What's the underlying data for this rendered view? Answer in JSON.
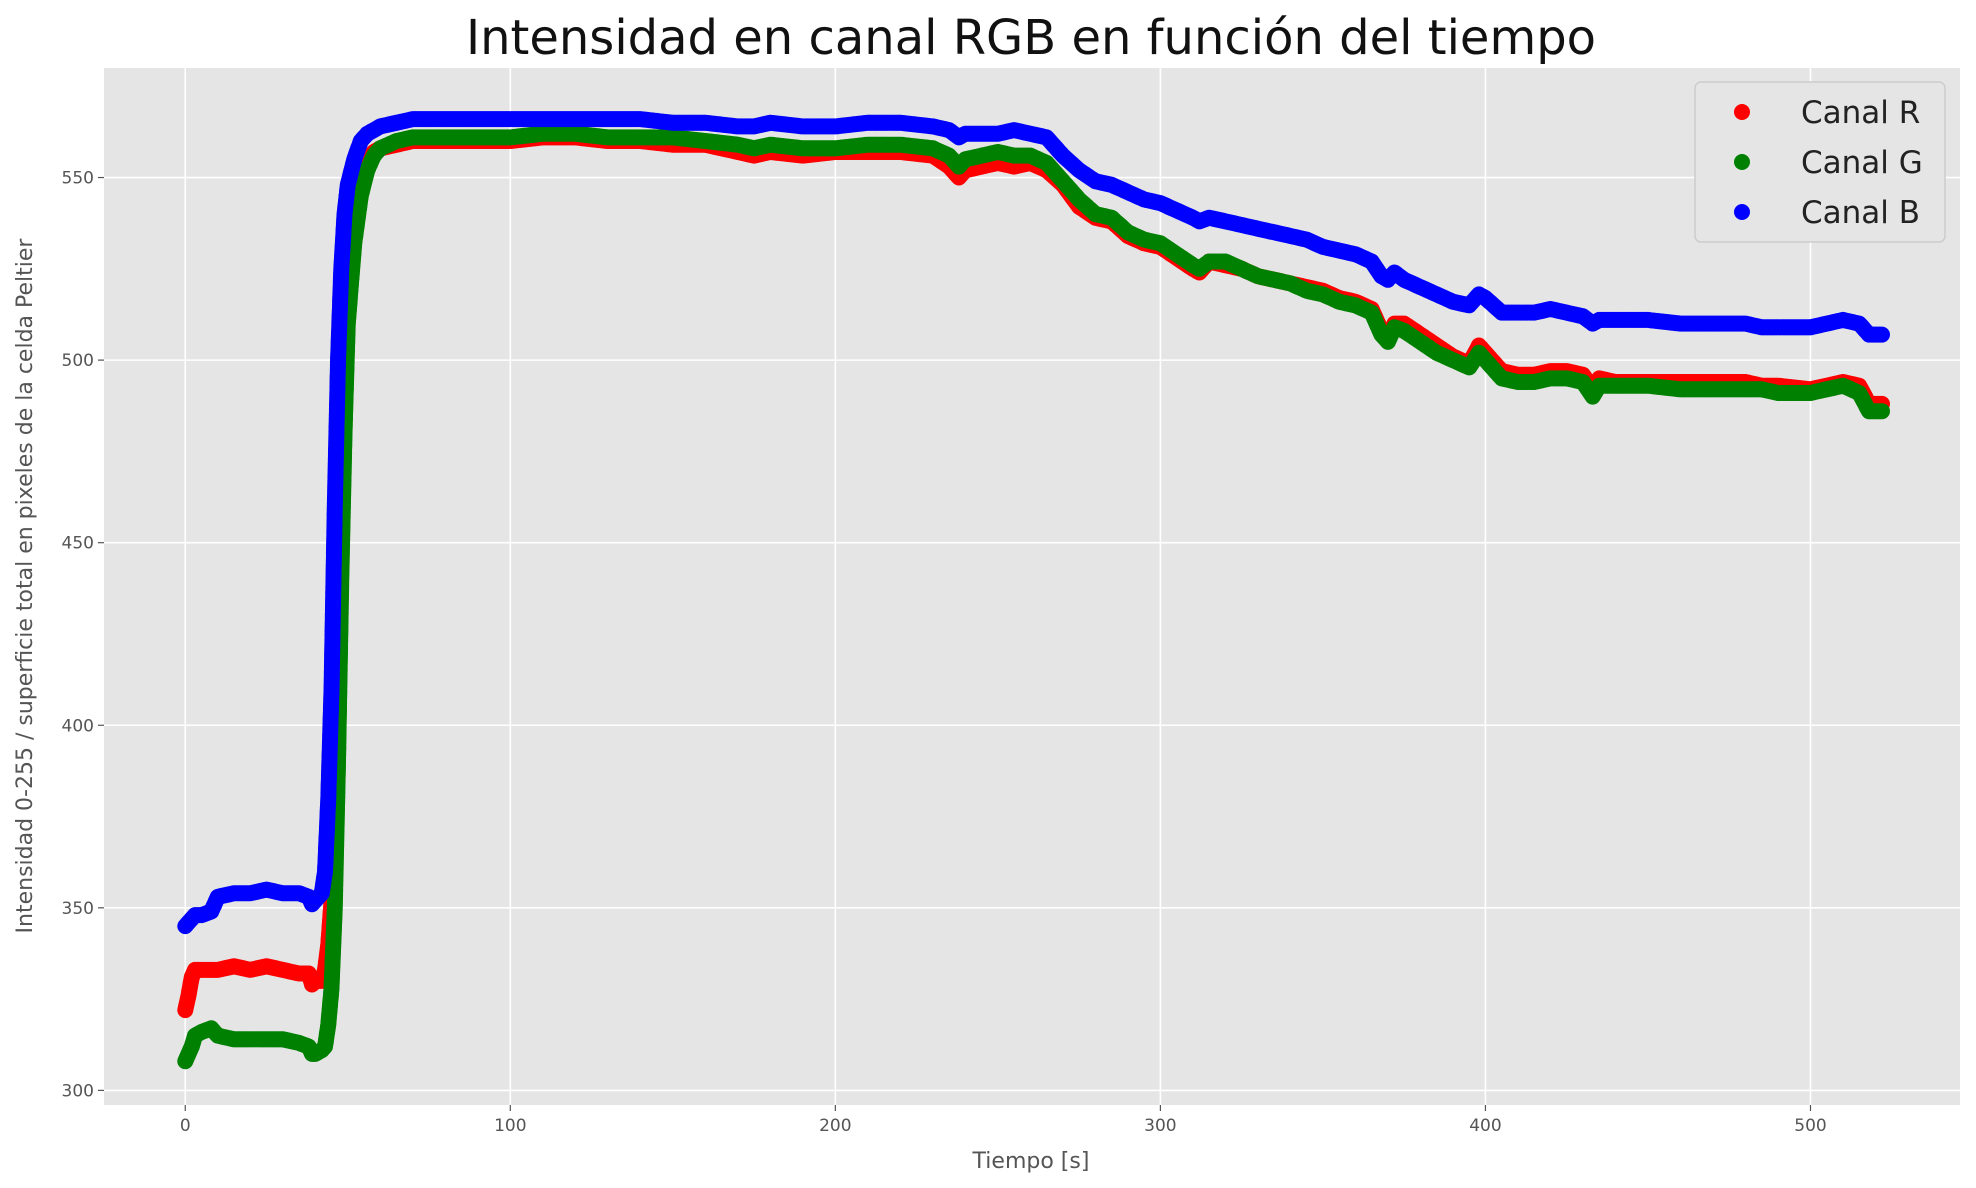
{
  "chart_data": {
    "type": "scatter",
    "title": "Intensidad en canal RGB en función del tiempo",
    "xlabel": "Tiempo [s]",
    "ylabel": "Intensidad 0-255 / superficie total en pixeles de la celda Peltier",
    "xlim": [
      -25,
      546
    ],
    "ylim": [
      296,
      580
    ],
    "x_ticks": [
      0,
      100,
      200,
      300,
      400,
      500
    ],
    "y_ticks": [
      300,
      350,
      400,
      450,
      500,
      550
    ],
    "grid": true,
    "legend_position": "top-right",
    "series": [
      {
        "name": "Canal R",
        "color": "#ff0000",
        "points": [
          [
            0,
            322
          ],
          [
            1,
            326
          ],
          [
            2,
            331
          ],
          [
            3,
            333
          ],
          [
            5,
            333
          ],
          [
            8,
            333
          ],
          [
            10,
            333
          ],
          [
            15,
            334
          ],
          [
            20,
            333
          ],
          [
            25,
            334
          ],
          [
            30,
            333
          ],
          [
            35,
            332
          ],
          [
            38,
            332
          ],
          [
            39,
            329
          ],
          [
            40,
            330
          ],
          [
            42,
            330
          ],
          [
            43,
            333
          ],
          [
            44,
            340
          ],
          [
            45,
            352
          ],
          [
            46,
            380
          ],
          [
            47,
            420
          ],
          [
            48,
            460
          ],
          [
            49,
            495
          ],
          [
            50,
            520
          ],
          [
            52,
            540
          ],
          [
            54,
            550
          ],
          [
            56,
            555
          ],
          [
            58,
            557
          ],
          [
            60,
            558
          ],
          [
            65,
            559
          ],
          [
            70,
            560
          ],
          [
            80,
            560
          ],
          [
            90,
            560
          ],
          [
            100,
            560
          ],
          [
            110,
            561
          ],
          [
            120,
            561
          ],
          [
            130,
            560
          ],
          [
            140,
            560
          ],
          [
            150,
            559
          ],
          [
            160,
            559
          ],
          [
            170,
            557
          ],
          [
            175,
            556
          ],
          [
            180,
            557
          ],
          [
            190,
            556
          ],
          [
            200,
            557
          ],
          [
            210,
            557
          ],
          [
            220,
            557
          ],
          [
            230,
            556
          ],
          [
            235,
            553
          ],
          [
            238,
            550
          ],
          [
            240,
            552
          ],
          [
            245,
            553
          ],
          [
            250,
            554
          ],
          [
            255,
            553
          ],
          [
            260,
            554
          ],
          [
            265,
            552
          ],
          [
            270,
            548
          ],
          [
            275,
            542
          ],
          [
            280,
            539
          ],
          [
            285,
            538
          ],
          [
            290,
            534
          ],
          [
            295,
            532
          ],
          [
            300,
            531
          ],
          [
            305,
            528
          ],
          [
            310,
            525
          ],
          [
            312,
            524
          ],
          [
            315,
            527
          ],
          [
            320,
            526
          ],
          [
            325,
            525
          ],
          [
            330,
            523
          ],
          [
            335,
            522
          ],
          [
            340,
            521
          ],
          [
            345,
            520
          ],
          [
            350,
            519
          ],
          [
            355,
            517
          ],
          [
            360,
            516
          ],
          [
            365,
            514
          ],
          [
            368,
            508
          ],
          [
            370,
            506
          ],
          [
            372,
            510
          ],
          [
            375,
            510
          ],
          [
            380,
            507
          ],
          [
            385,
            504
          ],
          [
            390,
            501
          ],
          [
            395,
            499
          ],
          [
            398,
            504
          ],
          [
            400,
            502
          ],
          [
            405,
            497
          ],
          [
            410,
            496
          ],
          [
            415,
            496
          ],
          [
            420,
            497
          ],
          [
            425,
            497
          ],
          [
            430,
            496
          ],
          [
            433,
            492
          ],
          [
            435,
            495
          ],
          [
            440,
            494
          ],
          [
            450,
            494
          ],
          [
            460,
            494
          ],
          [
            470,
            494
          ],
          [
            480,
            494
          ],
          [
            485,
            493
          ],
          [
            490,
            493
          ],
          [
            500,
            492
          ],
          [
            505,
            493
          ],
          [
            510,
            494
          ],
          [
            515,
            493
          ],
          [
            518,
            488
          ],
          [
            520,
            488
          ],
          [
            522,
            488
          ]
        ]
      },
      {
        "name": "Canal G",
        "color": "#008000",
        "points": [
          [
            0,
            308
          ],
          [
            1,
            310
          ],
          [
            2,
            312
          ],
          [
            3,
            315
          ],
          [
            5,
            316
          ],
          [
            8,
            317
          ],
          [
            10,
            315
          ],
          [
            15,
            314
          ],
          [
            20,
            314
          ],
          [
            25,
            314
          ],
          [
            30,
            314
          ],
          [
            35,
            313
          ],
          [
            38,
            312
          ],
          [
            39,
            310
          ],
          [
            40,
            310
          ],
          [
            42,
            311
          ],
          [
            43,
            312
          ],
          [
            44,
            318
          ],
          [
            45,
            328
          ],
          [
            46,
            350
          ],
          [
            47,
            390
          ],
          [
            48,
            440
          ],
          [
            49,
            480
          ],
          [
            50,
            510
          ],
          [
            52,
            532
          ],
          [
            54,
            545
          ],
          [
            56,
            552
          ],
          [
            58,
            556
          ],
          [
            60,
            558
          ],
          [
            65,
            560
          ],
          [
            70,
            561
          ],
          [
            80,
            561
          ],
          [
            90,
            561
          ],
          [
            100,
            561
          ],
          [
            110,
            562
          ],
          [
            120,
            562
          ],
          [
            130,
            561
          ],
          [
            140,
            561
          ],
          [
            150,
            561
          ],
          [
            160,
            560
          ],
          [
            170,
            559
          ],
          [
            175,
            558
          ],
          [
            180,
            559
          ],
          [
            190,
            558
          ],
          [
            200,
            558
          ],
          [
            210,
            559
          ],
          [
            220,
            559
          ],
          [
            230,
            558
          ],
          [
            235,
            556
          ],
          [
            238,
            553
          ],
          [
            240,
            555
          ],
          [
            245,
            556
          ],
          [
            250,
            557
          ],
          [
            255,
            556
          ],
          [
            260,
            556
          ],
          [
            265,
            554
          ],
          [
            270,
            549
          ],
          [
            275,
            544
          ],
          [
            280,
            540
          ],
          [
            285,
            539
          ],
          [
            290,
            535
          ],
          [
            295,
            533
          ],
          [
            300,
            532
          ],
          [
            305,
            529
          ],
          [
            310,
            526
          ],
          [
            312,
            525
          ],
          [
            315,
            527
          ],
          [
            320,
            527
          ],
          [
            325,
            525
          ],
          [
            330,
            523
          ],
          [
            335,
            522
          ],
          [
            340,
            521
          ],
          [
            345,
            519
          ],
          [
            350,
            518
          ],
          [
            355,
            516
          ],
          [
            360,
            515
          ],
          [
            365,
            513
          ],
          [
            368,
            507
          ],
          [
            370,
            505
          ],
          [
            372,
            509
          ],
          [
            375,
            508
          ],
          [
            380,
            505
          ],
          [
            385,
            502
          ],
          [
            390,
            500
          ],
          [
            395,
            498
          ],
          [
            398,
            502
          ],
          [
            400,
            500
          ],
          [
            405,
            495
          ],
          [
            410,
            494
          ],
          [
            415,
            494
          ],
          [
            420,
            495
          ],
          [
            425,
            495
          ],
          [
            430,
            494
          ],
          [
            433,
            490
          ],
          [
            435,
            493
          ],
          [
            440,
            493
          ],
          [
            450,
            493
          ],
          [
            460,
            492
          ],
          [
            470,
            492
          ],
          [
            480,
            492
          ],
          [
            485,
            492
          ],
          [
            490,
            491
          ],
          [
            500,
            491
          ],
          [
            505,
            492
          ],
          [
            510,
            493
          ],
          [
            515,
            491
          ],
          [
            518,
            486
          ],
          [
            520,
            486
          ],
          [
            522,
            486
          ]
        ]
      },
      {
        "name": "Canal B",
        "color": "#0000ff",
        "points": [
          [
            0,
            345
          ],
          [
            1,
            346
          ],
          [
            2,
            347
          ],
          [
            3,
            348
          ],
          [
            5,
            348
          ],
          [
            8,
            349
          ],
          [
            10,
            353
          ],
          [
            15,
            354
          ],
          [
            20,
            354
          ],
          [
            25,
            355
          ],
          [
            30,
            354
          ],
          [
            35,
            354
          ],
          [
            38,
            353
          ],
          [
            39,
            351
          ],
          [
            40,
            352
          ],
          [
            42,
            354
          ],
          [
            43,
            360
          ],
          [
            44,
            380
          ],
          [
            45,
            410
          ],
          [
            46,
            460
          ],
          [
            47,
            500
          ],
          [
            48,
            525
          ],
          [
            49,
            540
          ],
          [
            50,
            548
          ],
          [
            52,
            555
          ],
          [
            54,
            560
          ],
          [
            56,
            562
          ],
          [
            58,
            563
          ],
          [
            60,
            564
          ],
          [
            65,
            565
          ],
          [
            70,
            566
          ],
          [
            80,
            566
          ],
          [
            90,
            566
          ],
          [
            100,
            566
          ],
          [
            110,
            566
          ],
          [
            120,
            566
          ],
          [
            130,
            566
          ],
          [
            140,
            566
          ],
          [
            150,
            565
          ],
          [
            160,
            565
          ],
          [
            170,
            564
          ],
          [
            175,
            564
          ],
          [
            180,
            565
          ],
          [
            190,
            564
          ],
          [
            200,
            564
          ],
          [
            210,
            565
          ],
          [
            220,
            565
          ],
          [
            230,
            564
          ],
          [
            235,
            563
          ],
          [
            238,
            561
          ],
          [
            240,
            562
          ],
          [
            245,
            562
          ],
          [
            250,
            562
          ],
          [
            255,
            563
          ],
          [
            260,
            562
          ],
          [
            265,
            561
          ],
          [
            270,
            556
          ],
          [
            275,
            552
          ],
          [
            280,
            549
          ],
          [
            285,
            548
          ],
          [
            290,
            546
          ],
          [
            295,
            544
          ],
          [
            300,
            543
          ],
          [
            305,
            541
          ],
          [
            310,
            539
          ],
          [
            312,
            538
          ],
          [
            315,
            539
          ],
          [
            320,
            538
          ],
          [
            325,
            537
          ],
          [
            330,
            536
          ],
          [
            335,
            535
          ],
          [
            340,
            534
          ],
          [
            345,
            533
          ],
          [
            350,
            531
          ],
          [
            355,
            530
          ],
          [
            360,
            529
          ],
          [
            365,
            527
          ],
          [
            368,
            523
          ],
          [
            370,
            522
          ],
          [
            372,
            524
          ],
          [
            375,
            522
          ],
          [
            380,
            520
          ],
          [
            385,
            518
          ],
          [
            390,
            516
          ],
          [
            395,
            515
          ],
          [
            398,
            518
          ],
          [
            400,
            517
          ],
          [
            405,
            513
          ],
          [
            410,
            513
          ],
          [
            415,
            513
          ],
          [
            420,
            514
          ],
          [
            425,
            513
          ],
          [
            430,
            512
          ],
          [
            433,
            510
          ],
          [
            435,
            511
          ],
          [
            440,
            511
          ],
          [
            450,
            511
          ],
          [
            460,
            510
          ],
          [
            470,
            510
          ],
          [
            480,
            510
          ],
          [
            485,
            509
          ],
          [
            490,
            509
          ],
          [
            500,
            509
          ],
          [
            505,
            510
          ],
          [
            510,
            511
          ],
          [
            515,
            510
          ],
          [
            518,
            507
          ],
          [
            520,
            507
          ],
          [
            522,
            507
          ]
        ]
      }
    ]
  }
}
